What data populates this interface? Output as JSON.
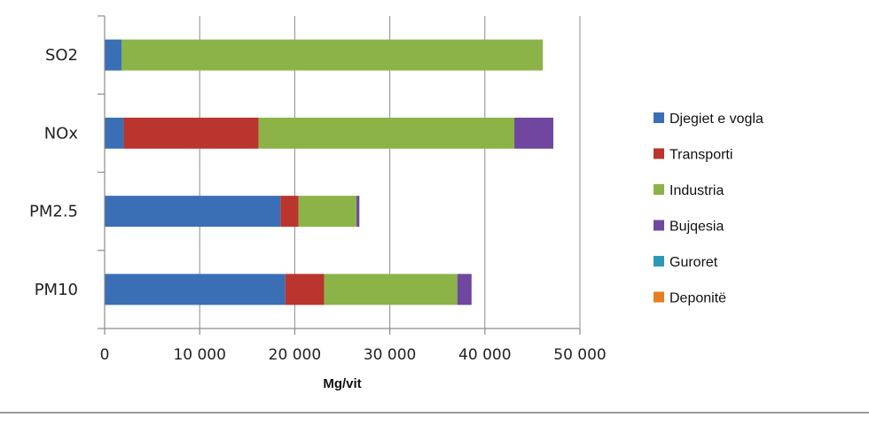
{
  "chart_data": {
    "type": "bar",
    "orientation": "horizontal",
    "stacked": true,
    "categories": [
      "SO2",
      "NOx",
      "PM2.5",
      "PM10"
    ],
    "series": [
      {
        "name": "Djegiet e vogla",
        "color": "#3A6FB5",
        "values": [
          1800,
          2000,
          18500,
          19000
        ]
      },
      {
        "name": "Transporti",
        "color": "#B9352E",
        "values": [
          0,
          14200,
          1900,
          4100
        ]
      },
      {
        "name": "Industria",
        "color": "#8CB347",
        "values": [
          44300,
          26900,
          6100,
          14000
        ]
      },
      {
        "name": "Bujqesia",
        "color": "#6F479E",
        "values": [
          0,
          4100,
          300,
          1500
        ]
      },
      {
        "name": "Guroret",
        "color": "#2D9AB5",
        "values": [
          0,
          0,
          0,
          0
        ]
      },
      {
        "name": "Deponitë",
        "color": "#E57E22",
        "values": [
          0,
          0,
          0,
          0
        ]
      }
    ],
    "xlabel": "Mg/vit",
    "xlim": [
      0,
      50000
    ],
    "xticks": [
      0,
      10000,
      20000,
      30000,
      40000,
      50000
    ],
    "xtick_labels": [
      "0",
      "10 000",
      "20 000",
      "30 000",
      "40 000",
      "50 000"
    ],
    "grid": "vertical",
    "legend_position": "right"
  }
}
